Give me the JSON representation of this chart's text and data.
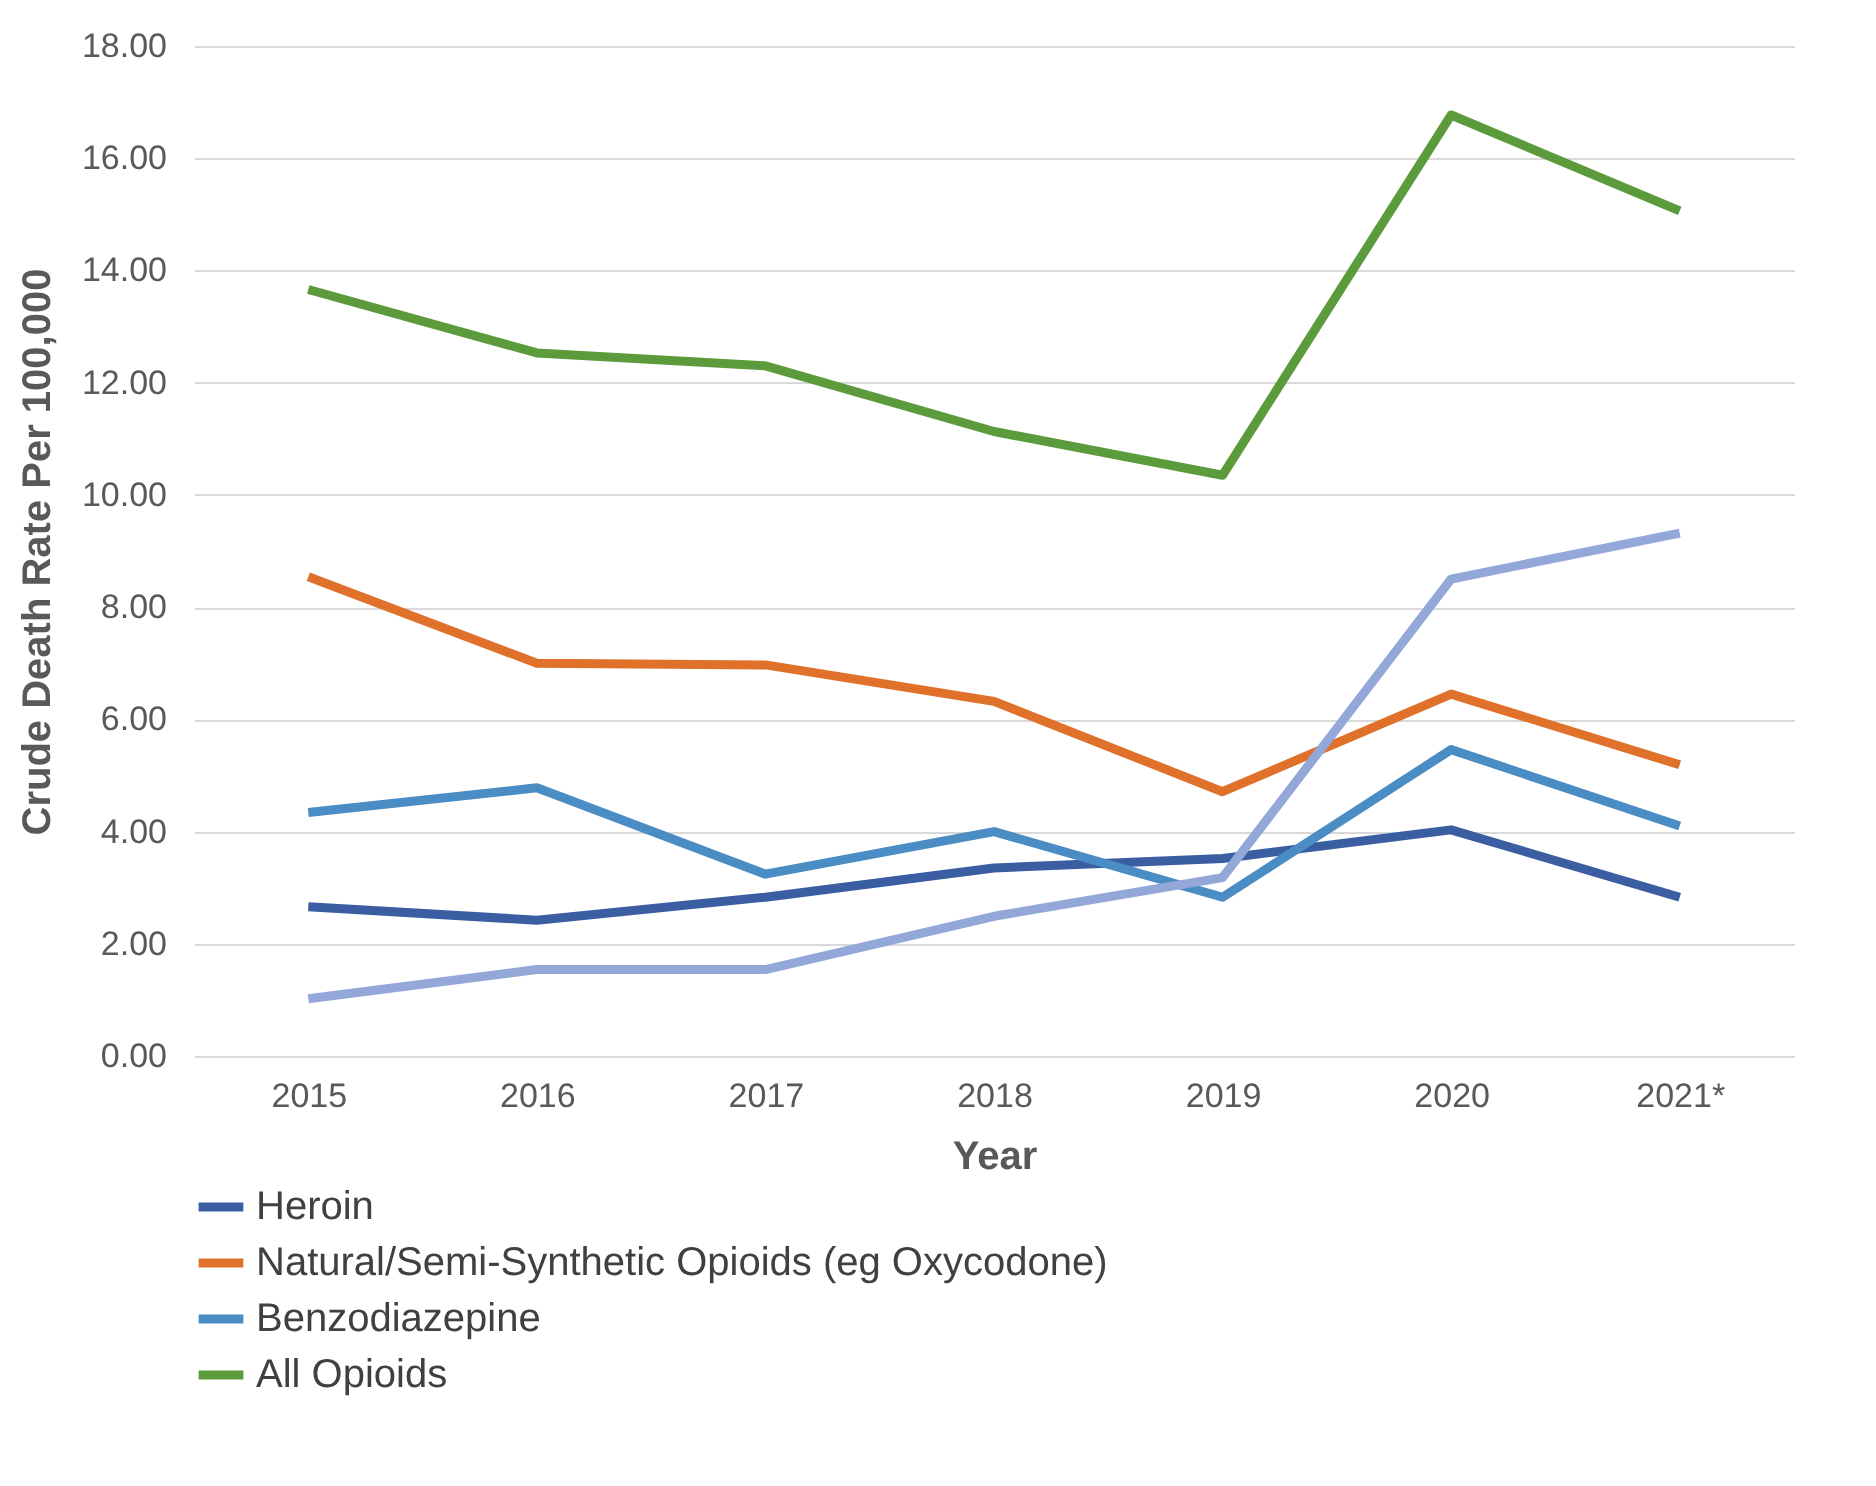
{
  "chart_data": {
    "type": "line",
    "xlabel": "Year",
    "ylabel": "Crude Death Rate Per 100,000",
    "categories": [
      "2015",
      "2016",
      "2017",
      "2018",
      "2019",
      "2020",
      "2021*"
    ],
    "series": [
      {
        "name": "Heroin",
        "color": "#3b5ea3",
        "values": [
          2.66,
          2.42,
          2.83,
          3.35,
          3.52,
          4.03,
          2.83
        ]
      },
      {
        "name": "Natural/Semi-Synthetic Opioids (eg Oxycodone)",
        "color": "#e0712b",
        "values": [
          8.54,
          7.0,
          6.97,
          6.32,
          4.71,
          6.45,
          5.19
        ]
      },
      {
        "name": "Benzodiazepine",
        "color": "#4a8cc4",
        "values": [
          4.34,
          4.78,
          3.24,
          4.0,
          2.83,
          5.46,
          4.1
        ]
      },
      {
        "name": "All Opioids",
        "color": "#5c9b3c",
        "values": [
          13.66,
          12.53,
          12.3,
          11.13,
          10.35,
          16.77,
          15.06
        ]
      },
      {
        "color": "#93a8d9",
        "values": [
          1.02,
          1.54,
          1.54,
          2.49,
          3.18,
          8.5,
          9.32
        ]
      }
    ],
    "ylim": [
      0,
      18
    ],
    "yticks": [
      {
        "value": 0,
        "label": "0.00"
      },
      {
        "value": 2,
        "label": "2.00"
      },
      {
        "value": 4,
        "label": "4.00"
      },
      {
        "value": 6,
        "label": "6.00"
      },
      {
        "value": 8,
        "label": "8.00"
      },
      {
        "value": 10,
        "label": "10.00"
      },
      {
        "value": 12,
        "label": "12.00"
      },
      {
        "value": 14,
        "label": "14.00"
      },
      {
        "value": 16,
        "label": "16.00"
      },
      {
        "value": 18,
        "label": "18.00"
      }
    ],
    "grid": "y",
    "legend": "bottom",
    "line_style": "solid"
  }
}
